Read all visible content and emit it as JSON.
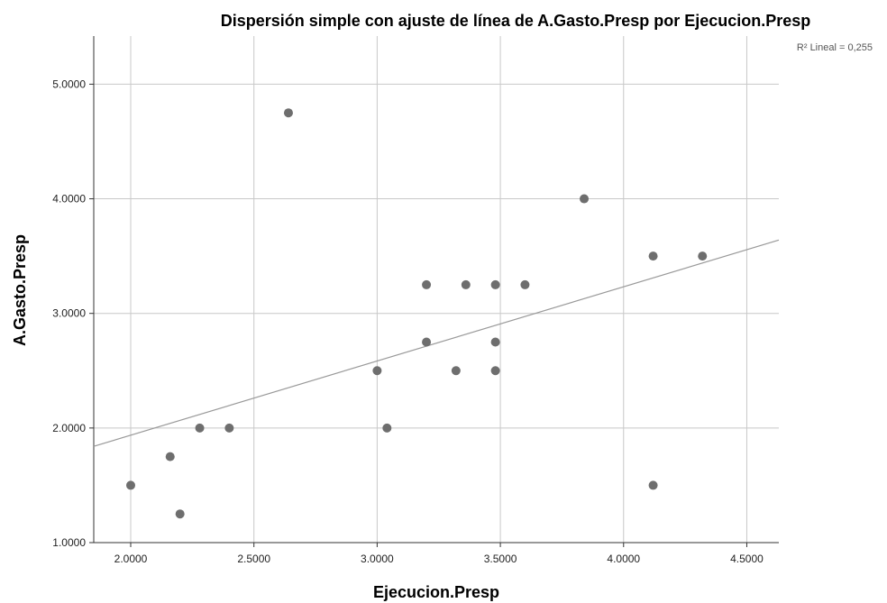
{
  "chart_data": {
    "type": "scatter",
    "title": "Dispersión simple con ajuste de línea de A.Gasto.Presp por Ejecucion.Presp",
    "xlabel": "Ejecucion.Presp",
    "ylabel": "A.Gasto.Presp",
    "r2_label": "R² Lineal = 0,255",
    "xlim": [
      1.85,
      4.63
    ],
    "ylim": [
      1.0,
      5.42
    ],
    "xticks": [
      2.0,
      2.5,
      3.0,
      3.5,
      4.0,
      4.5
    ],
    "xtick_labels": [
      "2.0000",
      "2.5000",
      "3.0000",
      "3.5000",
      "4.0000",
      "4.5000"
    ],
    "yticks": [
      1.0,
      2.0,
      3.0,
      4.0,
      5.0
    ],
    "ytick_labels": [
      "1.0000",
      "2.0000",
      "3.0000",
      "4.0000",
      "5.0000"
    ],
    "grid": true,
    "points": [
      {
        "x": 2.0,
        "y": 1.5
      },
      {
        "x": 2.16,
        "y": 1.75
      },
      {
        "x": 2.2,
        "y": 1.25
      },
      {
        "x": 2.28,
        "y": 2.0
      },
      {
        "x": 2.4,
        "y": 2.0
      },
      {
        "x": 2.64,
        "y": 4.75
      },
      {
        "x": 3.0,
        "y": 2.5
      },
      {
        "x": 3.04,
        "y": 2.0
      },
      {
        "x": 3.2,
        "y": 3.25
      },
      {
        "x": 3.2,
        "y": 2.75
      },
      {
        "x": 3.32,
        "y": 2.5
      },
      {
        "x": 3.36,
        "y": 3.25
      },
      {
        "x": 3.48,
        "y": 3.25
      },
      {
        "x": 3.48,
        "y": 2.75
      },
      {
        "x": 3.48,
        "y": 2.5
      },
      {
        "x": 3.6,
        "y": 3.25
      },
      {
        "x": 3.84,
        "y": 4.0
      },
      {
        "x": 4.12,
        "y": 3.5
      },
      {
        "x": 4.12,
        "y": 1.5
      },
      {
        "x": 4.32,
        "y": 3.5
      }
    ],
    "fit_line": {
      "x": [
        1.85,
        4.63
      ],
      "y": [
        1.84,
        3.64
      ]
    },
    "colors": {
      "points": "#6e6e6e",
      "fit_line": "#999999",
      "grid": "#c8c8c8"
    }
  }
}
